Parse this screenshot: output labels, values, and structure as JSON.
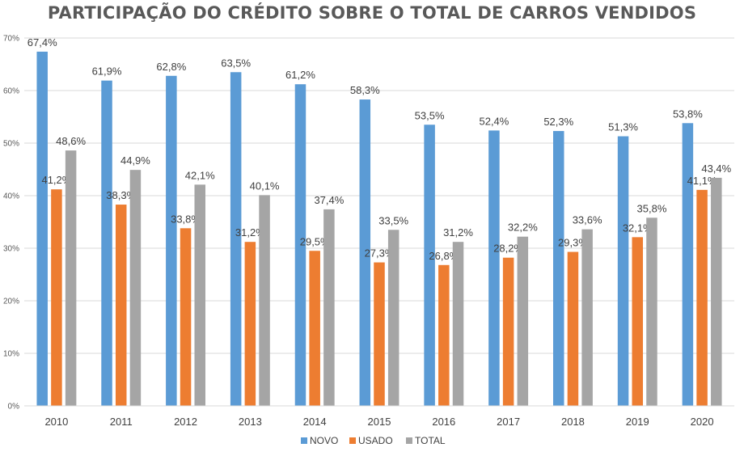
{
  "chart_data": {
    "type": "bar",
    "title": "PARTICIPAÇÃO DO CRÉDITO SOBRE O TOTAL DE CARROS VENDIDOS",
    "categories": [
      "2010",
      "2011",
      "2012",
      "2013",
      "2014",
      "2015",
      "2016",
      "2017",
      "2018",
      "2019",
      "2020"
    ],
    "series": [
      {
        "name": "NOVO",
        "color": "#5B9BD5",
        "values": [
          67.4,
          61.9,
          62.8,
          63.5,
          61.2,
          58.3,
          53.5,
          52.4,
          52.3,
          51.3,
          53.8
        ],
        "labels": [
          "67,4%",
          "61,9%",
          "62,8%",
          "63,5%",
          "61,2%",
          "58,3%",
          "53,5%",
          "52,4%",
          "52,3%",
          "51,3%",
          "53,8%"
        ]
      },
      {
        "name": "USADO",
        "color": "#ED7D31",
        "values": [
          41.2,
          38.3,
          33.8,
          31.2,
          29.5,
          27.3,
          26.8,
          28.2,
          29.3,
          32.1,
          41.1
        ],
        "labels": [
          "41,2%",
          "38,3%",
          "33,8%",
          "31,2%",
          "29,5%",
          "27,3%",
          "26,8%",
          "28,2%",
          "29,3%",
          "32,1%",
          "41,1%"
        ]
      },
      {
        "name": "TOTAL",
        "color": "#A5A5A5",
        "values": [
          48.6,
          44.9,
          42.1,
          40.1,
          37.4,
          33.5,
          31.2,
          32.2,
          33.6,
          35.8,
          43.4
        ],
        "labels": [
          "48,6%",
          "44,9%",
          "42,1%",
          "40,1%",
          "37,4%",
          "33,5%",
          "31,2%",
          "32,2%",
          "33,6%",
          "35,8%",
          "43,4%"
        ]
      }
    ],
    "ylim": [
      0,
      70
    ],
    "yticks": [
      "0%",
      "10%",
      "20%",
      "30%",
      "40%",
      "50%",
      "60%",
      "70%"
    ],
    "grid": true,
    "legend_position": "bottom"
  }
}
